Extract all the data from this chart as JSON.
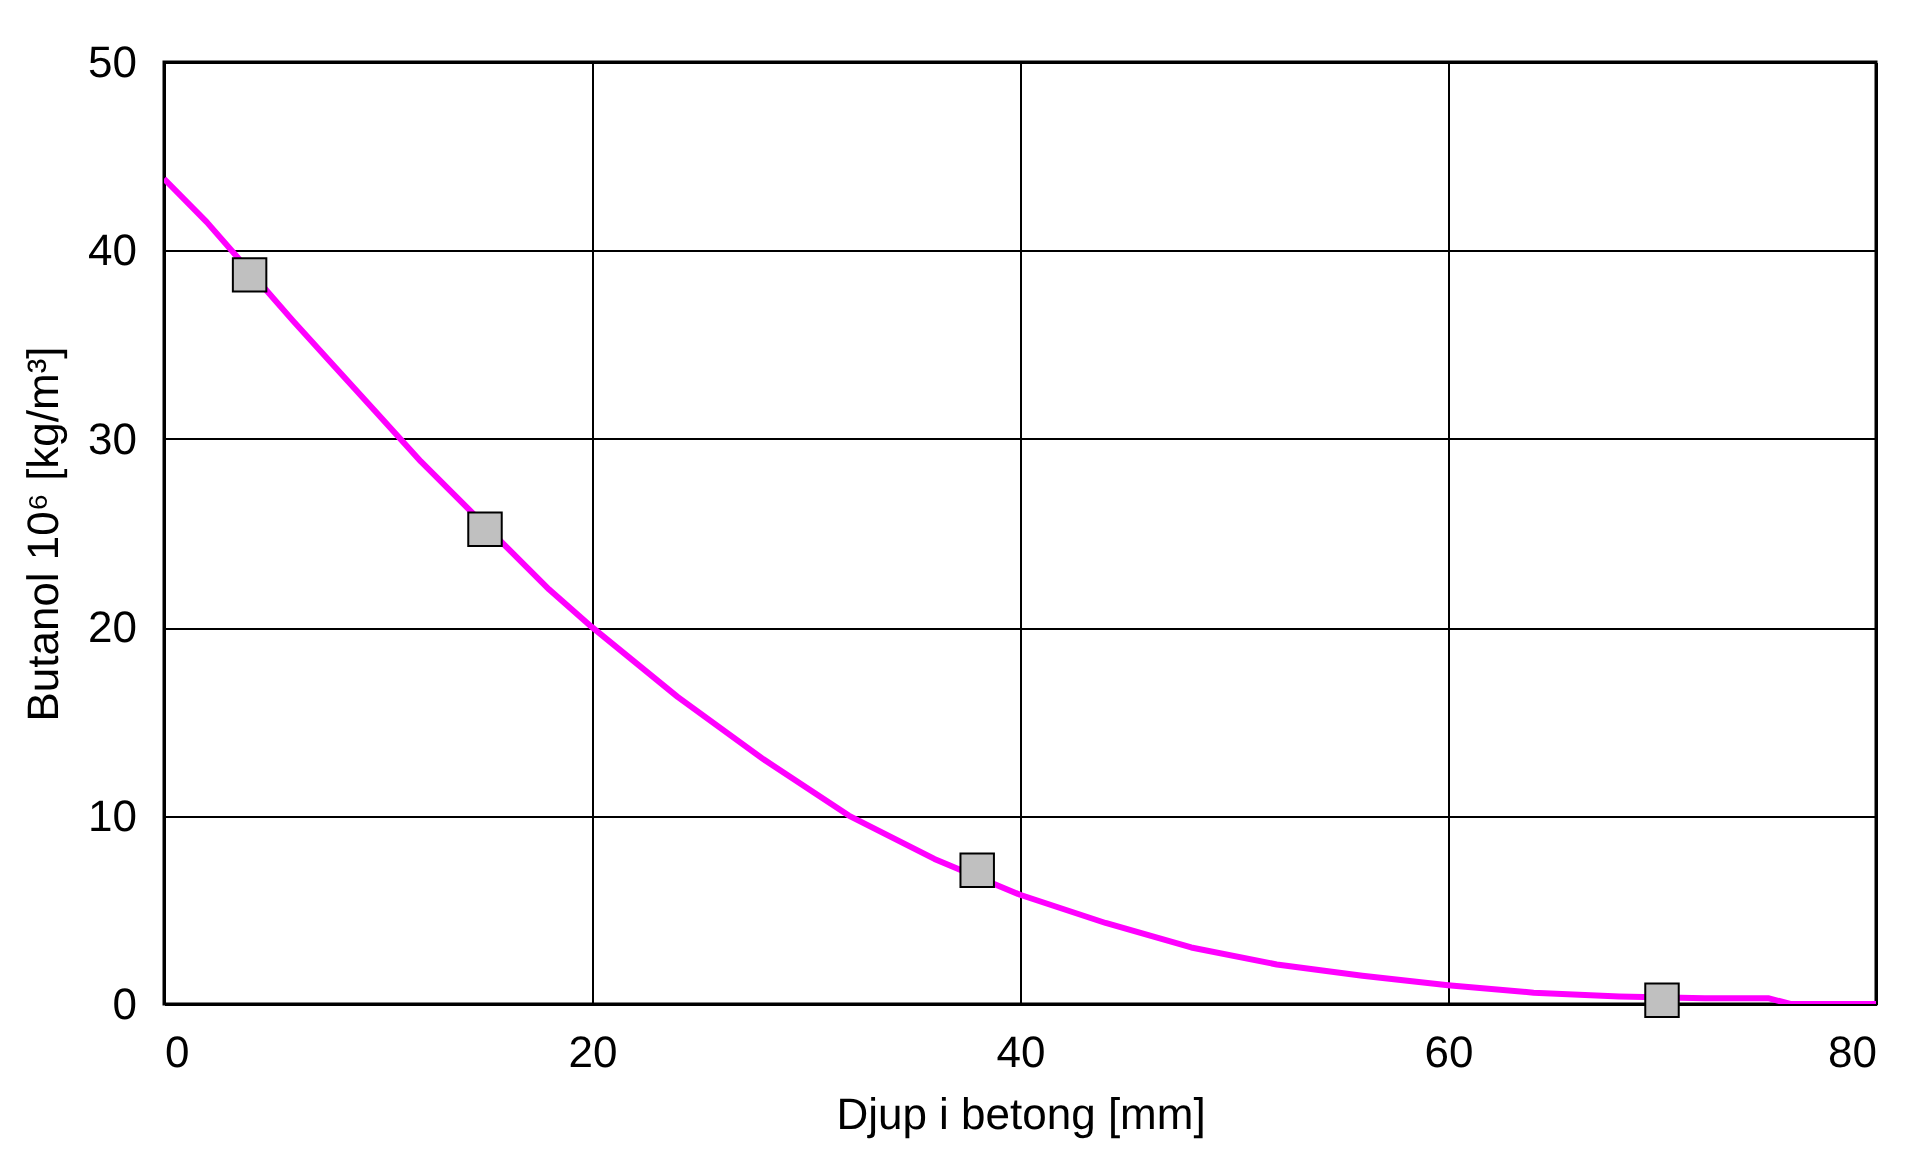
{
  "chart_data": {
    "type": "scatter",
    "xlabel": "Djup i betong [mm]",
    "ylabel": "Butanol 10⁶ [kg/m³]",
    "xlim": [
      0,
      80
    ],
    "xticks": [
      0,
      20,
      40,
      60,
      80
    ],
    "ylim": [
      0,
      50
    ],
    "yticks": [
      0,
      10,
      20,
      30,
      40,
      50
    ],
    "grid": true,
    "legend": false,
    "series": [
      {
        "type": "line",
        "color": "#ff00ff",
        "marker": "none",
        "line_style": "solid",
        "x": [
          0,
          2,
          6,
          8,
          10,
          12,
          18,
          20,
          24,
          28,
          32,
          36,
          40,
          44,
          48,
          52,
          56,
          60,
          64,
          68,
          72,
          75,
          76,
          80
        ],
        "values": [
          43.8,
          41.5,
          36.3,
          33.8,
          31.3,
          28.8,
          22,
          20,
          16.3,
          13,
          10,
          7.7,
          5.8,
          4.3,
          3,
          2.1,
          1.5,
          1,
          0.6,
          0.4,
          0.3,
          0.3,
          0,
          0
        ]
      },
      {
        "color": "#c0c0c0",
        "marker": "square",
        "x": [
          4,
          15,
          38,
          70
        ],
        "values": [
          38.7,
          25.2,
          7.1,
          0.2
        ]
      }
    ]
  }
}
